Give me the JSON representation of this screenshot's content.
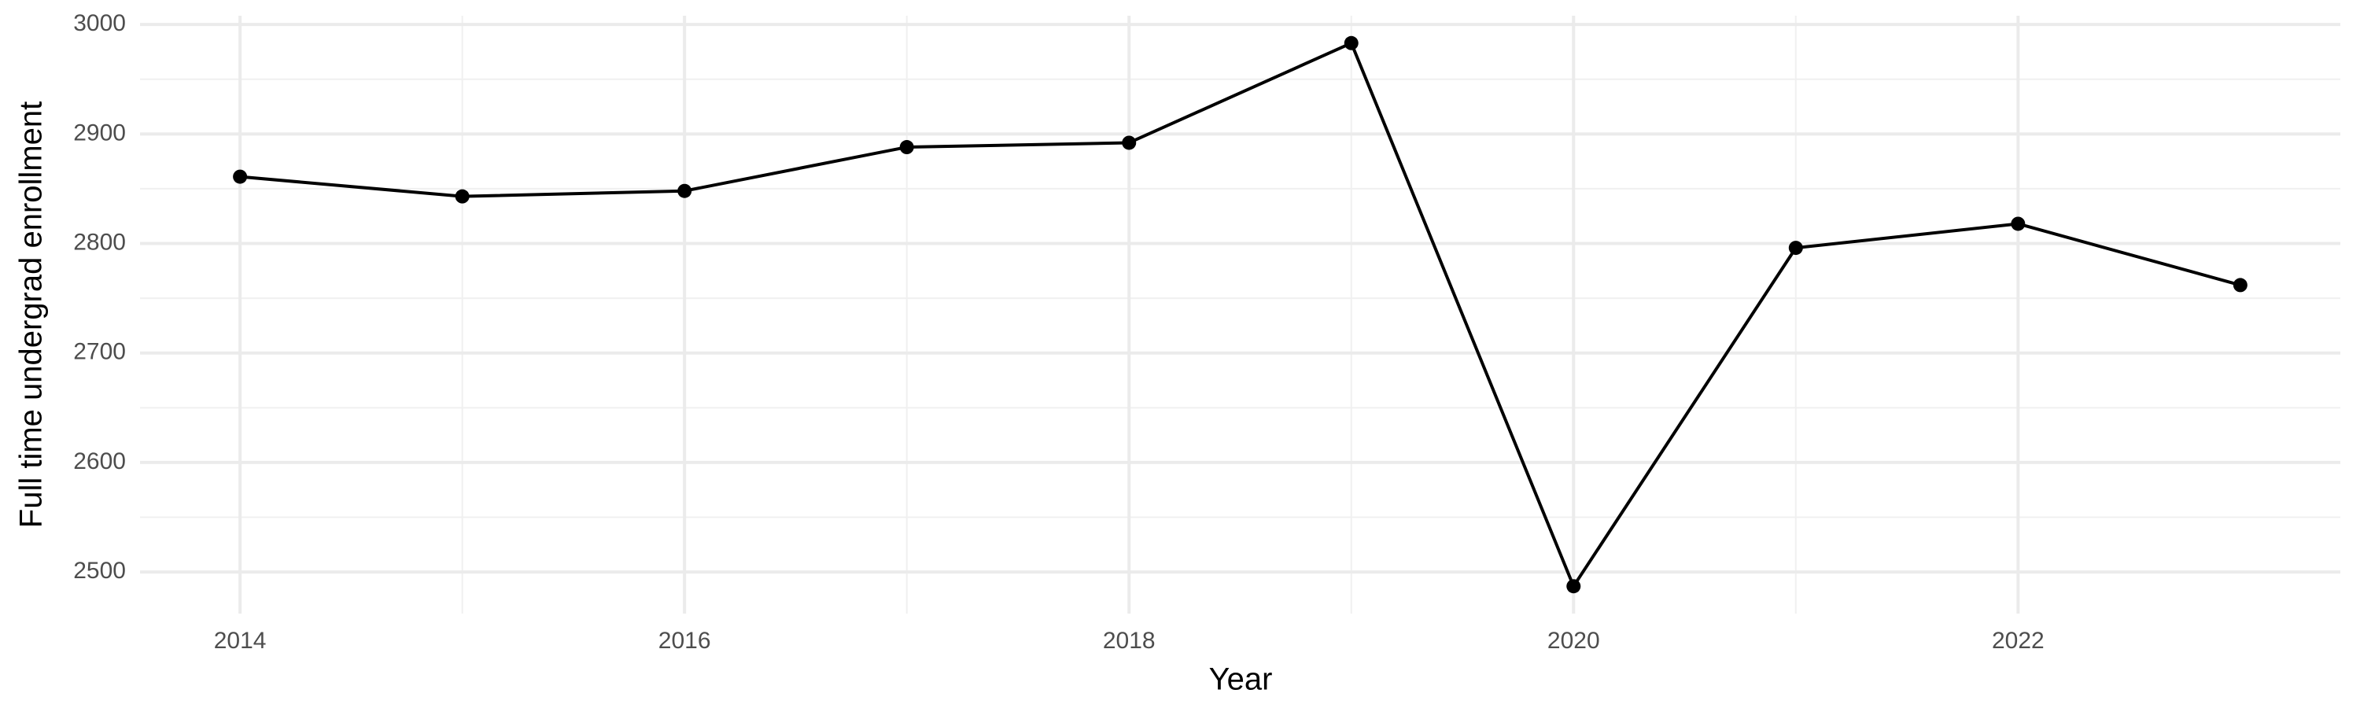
{
  "chart_data": {
    "type": "line",
    "x_label": "Year",
    "y_label": "Full time undergrad enrollment",
    "x": [
      2014,
      2015,
      2016,
      2017,
      2018,
      2019,
      2020,
      2021,
      2022,
      2023
    ],
    "series": [
      {
        "color": "#000000",
        "values": [
          2861,
          2843,
          2848,
          2888,
          2892,
          2983,
          2487,
          2796,
          2818,
          2762
        ]
      }
    ],
    "xlim": [
      2013.55,
      2023.45
    ],
    "xticks": [
      2014,
      2016,
      2018,
      2020,
      2022
    ],
    "ylim": [
      2462,
      3008
    ],
    "yticks": [
      2500,
      2600,
      2700,
      2800,
      2900,
      3000
    ],
    "grid": true
  }
}
